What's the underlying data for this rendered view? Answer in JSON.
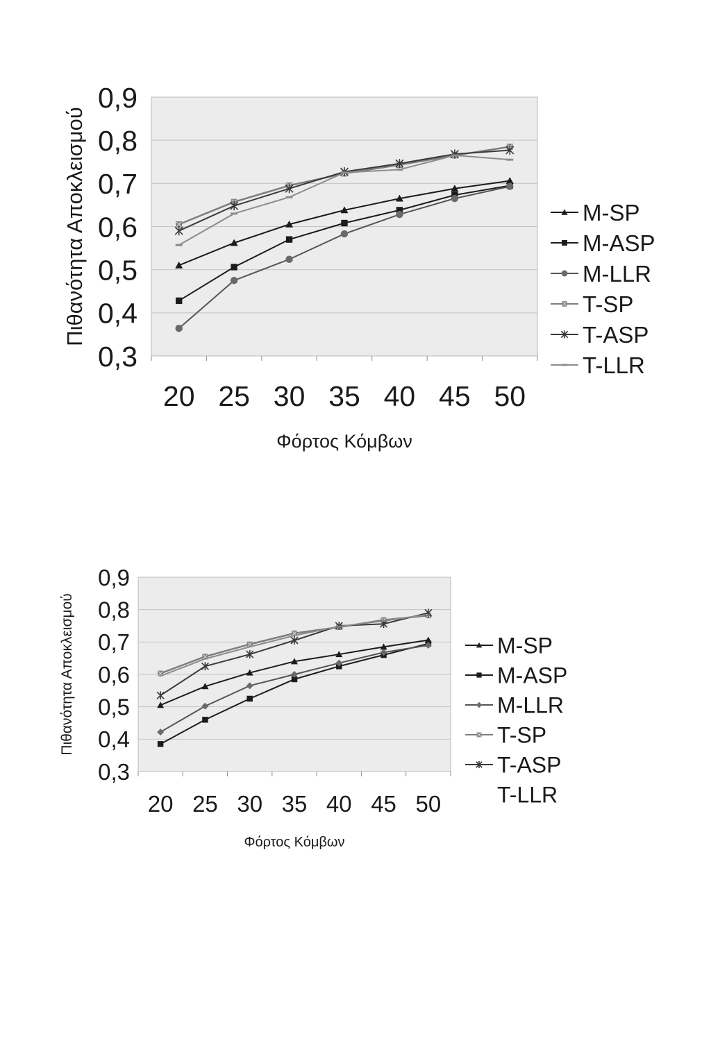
{
  "chart_data": [
    {
      "type": "line",
      "xlabel": "Φόρτος Κόμβων",
      "ylabel": "Πιθανότητα Αποκλεισμού",
      "categories": [
        "20",
        "25",
        "30",
        "35",
        "40",
        "45",
        "50"
      ],
      "y_ticks": [
        "0,3",
        "0,4",
        "0,5",
        "0,6",
        "0,7",
        "0,8",
        "0,9"
      ],
      "ylim": [
        0.3,
        0.9
      ],
      "grid": "horizontal",
      "legend_position": "right",
      "series": [
        {
          "name": "M-SP",
          "marker": "triangle",
          "values": [
            0.51,
            0.562,
            0.605,
            0.638,
            0.665,
            0.688,
            0.706
          ]
        },
        {
          "name": "M-ASP",
          "marker": "square",
          "values": [
            0.428,
            0.506,
            0.57,
            0.608,
            0.638,
            0.673,
            0.695
          ]
        },
        {
          "name": "M-LLR",
          "marker": "circle",
          "values": [
            0.364,
            0.475,
            0.524,
            0.583,
            0.628,
            0.665,
            0.693
          ]
        },
        {
          "name": "T-SP",
          "marker": "xsquare",
          "values": [
            0.605,
            0.657,
            0.695,
            0.723,
            0.743,
            0.765,
            0.785
          ]
        },
        {
          "name": "T-ASP",
          "marker": "star",
          "values": [
            0.59,
            0.648,
            0.688,
            0.727,
            0.746,
            0.768,
            0.777
          ]
        },
        {
          "name": "T-LLR",
          "marker": "dash",
          "values": [
            0.557,
            0.63,
            0.668,
            0.725,
            0.732,
            0.765,
            0.755
          ]
        }
      ]
    },
    {
      "type": "line",
      "xlabel": "Φόρτος Κόμβων",
      "ylabel": "Πιθανότητα Αποκλεισμού",
      "categories": [
        "20",
        "25",
        "30",
        "35",
        "40",
        "45",
        "50"
      ],
      "y_ticks": [
        "0,3",
        "0,4",
        "0,5",
        "0,6",
        "0,7",
        "0,8",
        "0,9"
      ],
      "ylim": [
        0.3,
        0.9
      ],
      "grid": "horizontal",
      "legend_position": "right",
      "series": [
        {
          "name": "M-SP",
          "marker": "triangle",
          "values": [
            0.505,
            0.563,
            0.605,
            0.64,
            0.662,
            0.685,
            0.706
          ]
        },
        {
          "name": "M-ASP",
          "marker": "square",
          "values": [
            0.385,
            0.46,
            0.525,
            0.585,
            0.625,
            0.66,
            0.695
          ]
        },
        {
          "name": "M-LLR",
          "marker": "diamond",
          "values": [
            0.422,
            0.502,
            0.565,
            0.6,
            0.635,
            0.668,
            0.69
          ]
        },
        {
          "name": "T-SP",
          "marker": "xsquare",
          "values": [
            0.603,
            0.655,
            0.693,
            0.727,
            0.746,
            0.768,
            0.782
          ]
        },
        {
          "name": "T-ASP",
          "marker": "star",
          "values": [
            0.535,
            0.625,
            0.662,
            0.705,
            0.75,
            0.756,
            0.79
          ]
        },
        {
          "name": "T-LLR",
          "marker": "none",
          "values": [
            0.595,
            0.648,
            0.685,
            0.72,
            0.748,
            0.765,
            0.785
          ]
        }
      ]
    }
  ]
}
